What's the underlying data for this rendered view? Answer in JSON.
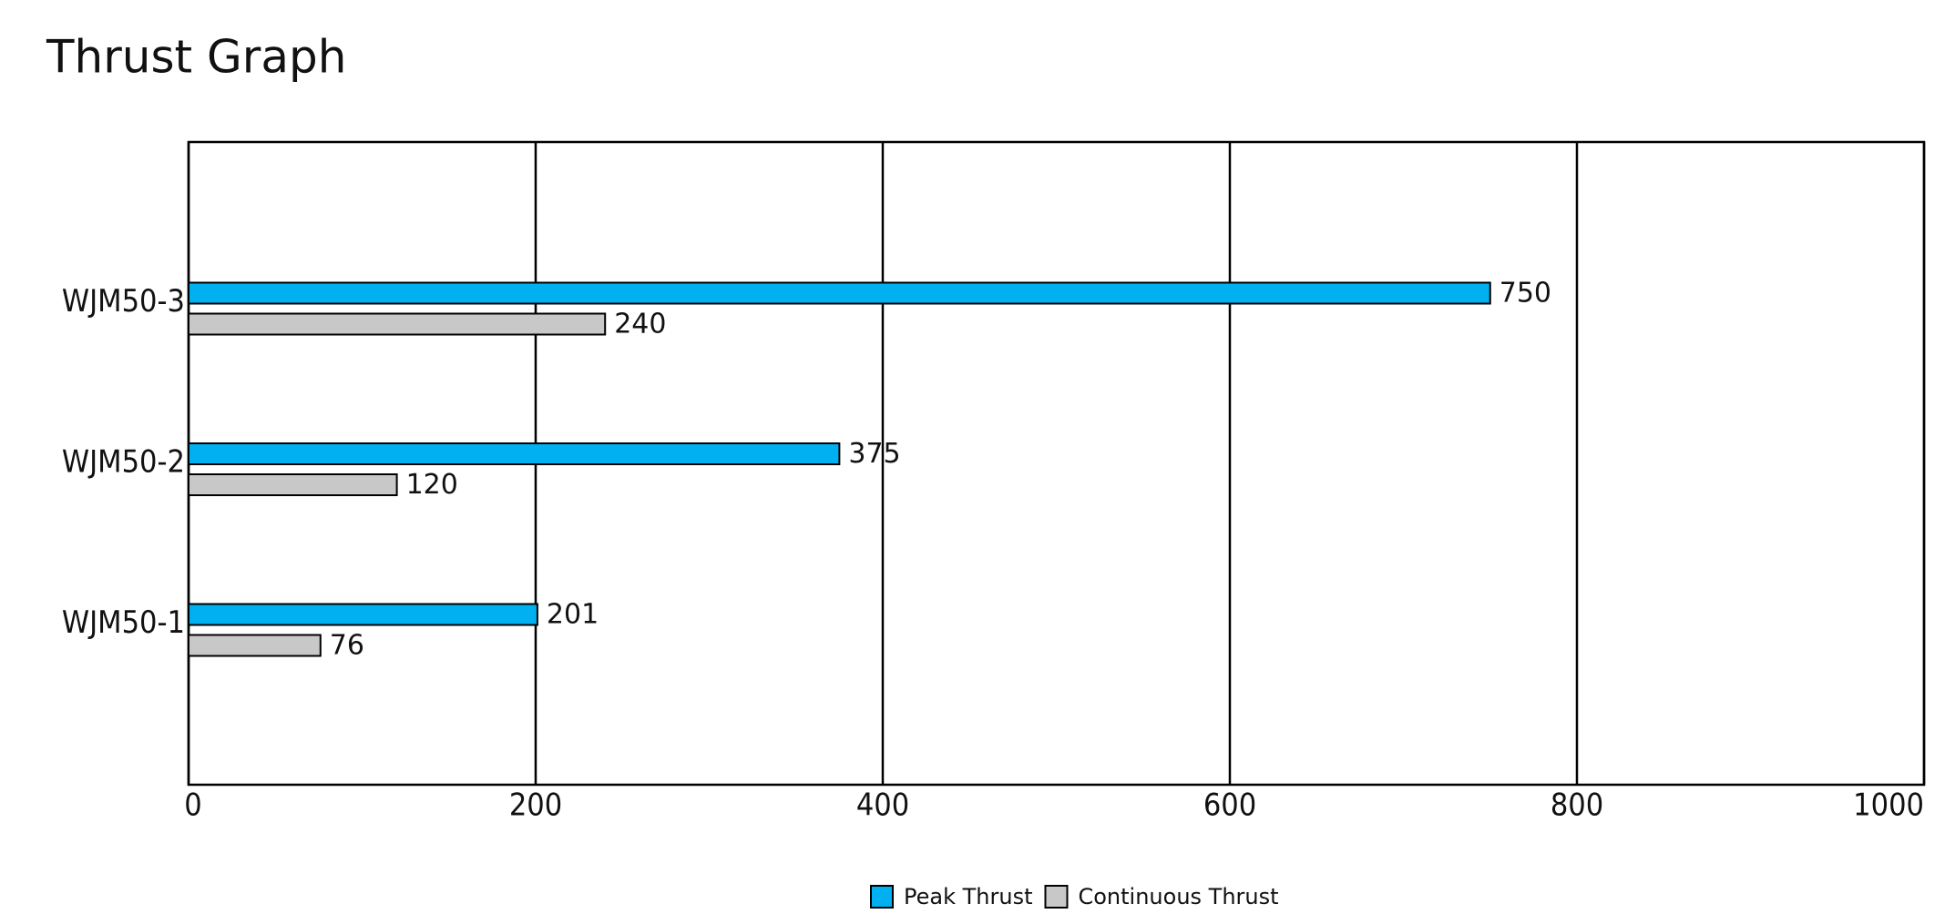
{
  "chart_data": {
    "type": "bar",
    "orientation": "horizontal",
    "title": "Thrust Graph",
    "categories": [
      "WJM50-1",
      "WJM50-2",
      "WJM50-3"
    ],
    "series": [
      {
        "name": "Peak Thrust",
        "color": "#00b0f0",
        "values": [
          201,
          375,
          750
        ]
      },
      {
        "name": "Continuous Thrust",
        "color": "#c8c8c8",
        "values": [
          76,
          120,
          240
        ]
      }
    ],
    "xlim": [
      0,
      1000
    ],
    "xticks": [
      0,
      200,
      400,
      600,
      800,
      1000
    ],
    "grid": true,
    "legend": "bottom"
  }
}
